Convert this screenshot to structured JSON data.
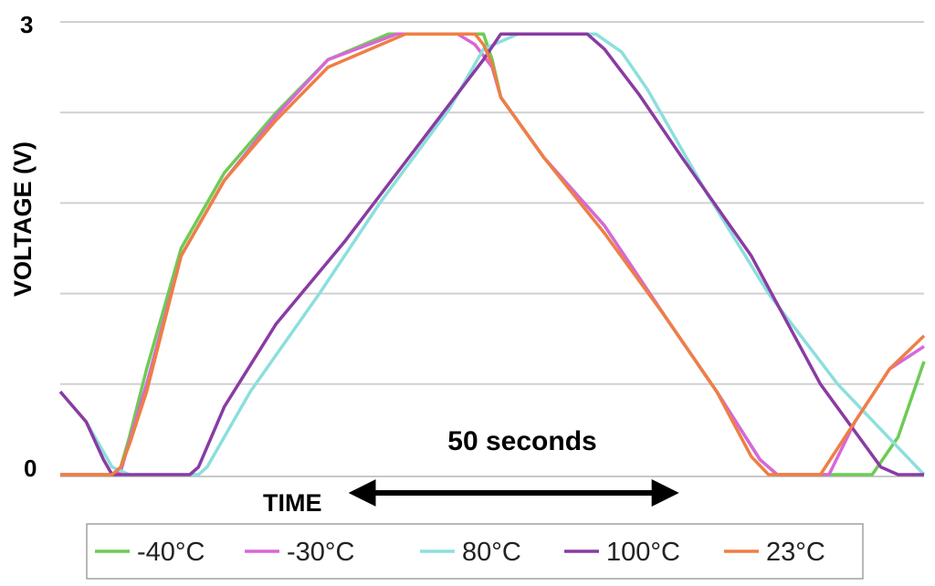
{
  "chart_data": {
    "type": "line",
    "title": "",
    "xlabel": "TIME",
    "ylabel": "VOLTAGE (V)",
    "ylim": [
      0,
      3
    ],
    "y_ticks": [
      "0",
      "3"
    ],
    "grid": true,
    "legend_position": "bottom",
    "annotation": {
      "text": "50 seconds",
      "from_x": 34,
      "to_x": 71
    },
    "series": [
      {
        "name": "-40°C",
        "color": "#6dcb55",
        "x": [
          0,
          5,
          6,
          7,
          8,
          10,
          14,
          19,
          25,
          31,
          38,
          40,
          42,
          48,
          49,
          50,
          51,
          56,
          63,
          70,
          76,
          81,
          83,
          87,
          90,
          94,
          97,
          100
        ],
        "y": [
          0,
          0,
          0,
          0.05,
          0.25,
          0.7,
          1.5,
          2.0,
          2.4,
          2.75,
          2.92,
          2.92,
          2.92,
          2.92,
          2.92,
          2.75,
          2.5,
          2.1,
          1.65,
          1.05,
          0.55,
          0.1,
          0,
          0,
          0,
          0,
          0.25,
          0.75
        ]
      },
      {
        "name": "-30°C",
        "color": "#d867d8",
        "x": [
          0,
          5,
          6,
          7,
          8,
          10,
          14,
          19,
          25,
          31,
          39,
          40,
          42,
          46,
          48,
          50,
          51,
          56,
          63,
          70,
          76,
          81,
          83,
          87,
          89,
          92,
          96,
          100
        ],
        "y": [
          0,
          0,
          0,
          0.02,
          0.22,
          0.6,
          1.45,
          1.95,
          2.38,
          2.75,
          2.92,
          2.92,
          2.92,
          2.92,
          2.85,
          2.7,
          2.5,
          2.1,
          1.65,
          1.05,
          0.55,
          0.1,
          0,
          0,
          0,
          0.35,
          0.7,
          0.85
        ]
      },
      {
        "name": "80°C",
        "color": "#8cdfdc",
        "x": [
          0,
          3,
          6,
          8,
          14,
          16,
          17,
          22,
          30,
          37,
          45,
          49,
          53,
          60,
          62,
          65,
          68,
          75,
          82,
          90,
          95,
          100
        ],
        "y": [
          0.55,
          0.35,
          0.05,
          0,
          0,
          0,
          0.05,
          0.55,
          1.2,
          1.8,
          2.42,
          2.82,
          2.92,
          2.92,
          2.92,
          2.8,
          2.55,
          1.85,
          1.2,
          0.6,
          0.3,
          0
        ]
      },
      {
        "name": "100°C",
        "color": "#8a3ba3",
        "x": [
          0,
          3,
          5,
          6,
          8,
          14,
          15,
          16,
          19,
          25,
          33,
          41,
          49,
          51,
          58,
          61,
          63,
          67,
          72,
          80,
          88,
          95,
          97,
          100
        ],
        "y": [
          0.55,
          0.35,
          0.1,
          0,
          0,
          0,
          0,
          0.05,
          0.45,
          1.0,
          1.55,
          2.15,
          2.75,
          2.92,
          2.92,
          2.92,
          2.82,
          2.52,
          2.1,
          1.45,
          0.6,
          0.05,
          0,
          0
        ]
      },
      {
        "name": "23°C",
        "color": "#ee7f44",
        "x": [
          0,
          5,
          6,
          7,
          8,
          10,
          14,
          19,
          25,
          31,
          40,
          42,
          45,
          48,
          49,
          50,
          51,
          56,
          63,
          70,
          76,
          80,
          82,
          85,
          88,
          92,
          96,
          100
        ],
        "y": [
          0,
          0,
          0,
          0.05,
          0.2,
          0.55,
          1.45,
          1.95,
          2.35,
          2.7,
          2.92,
          2.92,
          2.92,
          2.92,
          2.85,
          2.72,
          2.5,
          2.1,
          1.6,
          1.05,
          0.55,
          0.12,
          0,
          0,
          0,
          0.35,
          0.7,
          0.92
        ]
      }
    ]
  }
}
